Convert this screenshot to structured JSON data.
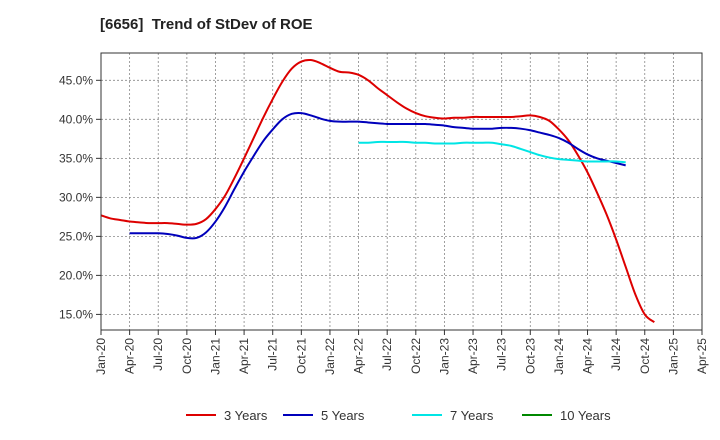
{
  "chart_data": {
    "type": "line",
    "title": "[6656]  Trend of StDev of ROE",
    "xlabel": "",
    "ylabel": "",
    "x_ticks": [
      "Jan-20",
      "Apr-20",
      "Jul-20",
      "Oct-20",
      "Jan-21",
      "Apr-21",
      "Jul-21",
      "Oct-21",
      "Jan-22",
      "Apr-22",
      "Jul-22",
      "Oct-22",
      "Jan-23",
      "Apr-23",
      "Jul-23",
      "Oct-23",
      "Jan-24",
      "Apr-24",
      "Jul-24",
      "Oct-24",
      "Jan-25",
      "Apr-25"
    ],
    "y_ticks": [
      "15.0%",
      "20.0%",
      "25.0%",
      "30.0%",
      "35.0%",
      "40.0%",
      "45.0%"
    ],
    "ylim": [
      13.0,
      48.5
    ],
    "grid": true,
    "legend_position": "bottom",
    "series": [
      {
        "name": "3 Years",
        "color": "#dd0000",
        "start": 0,
        "values": [
          27.7,
          27.3,
          27.1,
          26.9,
          26.8,
          26.7,
          26.7,
          26.7,
          26.6,
          26.5,
          26.6,
          27.2,
          28.5,
          30.2,
          32.5,
          35.0,
          37.6,
          40.2,
          42.6,
          44.8,
          46.5,
          47.4,
          47.6,
          47.2,
          46.6,
          46.1,
          46.0,
          45.7,
          45.0,
          44.0,
          43.1,
          42.2,
          41.4,
          40.8,
          40.4,
          40.2,
          40.1,
          40.2,
          40.2,
          40.3,
          40.3,
          40.3,
          40.3,
          40.3,
          40.4,
          40.5,
          40.3,
          39.8,
          38.7,
          37.3,
          35.4,
          33.2,
          30.6,
          27.8,
          24.6,
          21.1,
          17.6,
          15.0,
          14.0
        ]
      },
      {
        "name": "5 Years",
        "color": "#0000bb",
        "start": 3,
        "values": [
          25.4,
          25.4,
          25.4,
          25.4,
          25.3,
          25.1,
          24.8,
          24.8,
          25.5,
          26.9,
          28.8,
          31.1,
          33.3,
          35.3,
          37.2,
          38.7,
          40.0,
          40.7,
          40.8,
          40.5,
          40.1,
          39.8,
          39.7,
          39.7,
          39.7,
          39.6,
          39.5,
          39.4,
          39.4,
          39.4,
          39.4,
          39.4,
          39.3,
          39.2,
          39.0,
          38.9,
          38.8,
          38.8,
          38.8,
          38.9,
          38.9,
          38.8,
          38.6,
          38.3,
          38.0,
          37.6,
          37.0,
          36.2,
          35.5,
          35.0,
          34.7,
          34.4,
          34.1
        ]
      },
      {
        "name": "7 Years",
        "color": "#00e5e5",
        "start": 27,
        "values": [
          37.0,
          37.0,
          37.1,
          37.1,
          37.1,
          37.1,
          37.0,
          37.0,
          36.9,
          36.9,
          36.9,
          37.0,
          37.0,
          37.0,
          37.0,
          36.8,
          36.6,
          36.2,
          35.8,
          35.4,
          35.1,
          34.9,
          34.8,
          34.7,
          34.6,
          34.6,
          34.6,
          34.6,
          34.5
        ]
      },
      {
        "name": "10 Years",
        "color": "#008800",
        "start": 0,
        "values": []
      }
    ]
  }
}
